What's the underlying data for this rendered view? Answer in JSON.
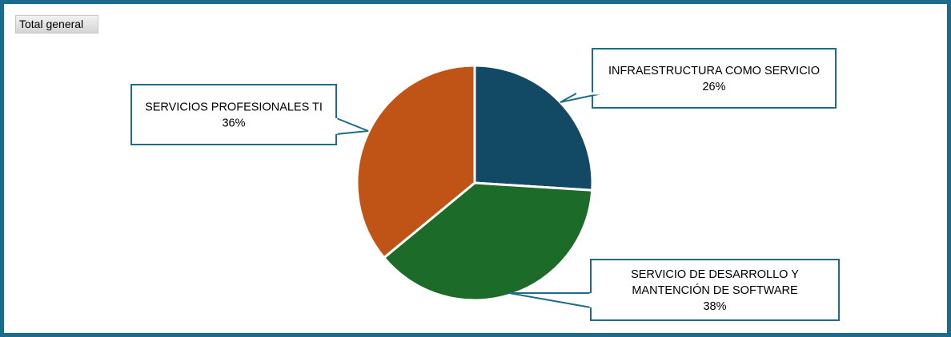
{
  "filter": {
    "label": "Total general"
  },
  "colors": {
    "frame_border": "#1b6b8f",
    "callout_border": "#1f6b8a",
    "slice_border": "#ffffff"
  },
  "chart_data": {
    "type": "pie",
    "title": "",
    "legend": "none",
    "slices": [
      {
        "label": [
          "INFRAESTRUCTURA COMO SERVICIO"
        ],
        "value": 26,
        "display": "26%",
        "color": "#124a66"
      },
      {
        "label": [
          "SERVICIO DE DESARROLLO Y",
          "MANTENCIÓN DE SOFTWARE"
        ],
        "value": 38,
        "display": "38%",
        "color": "#1c6b28"
      },
      {
        "label": [
          "SERVICIOS PROFESIONALES TI"
        ],
        "value": 36,
        "display": "36%",
        "color": "#c05417"
      }
    ]
  }
}
